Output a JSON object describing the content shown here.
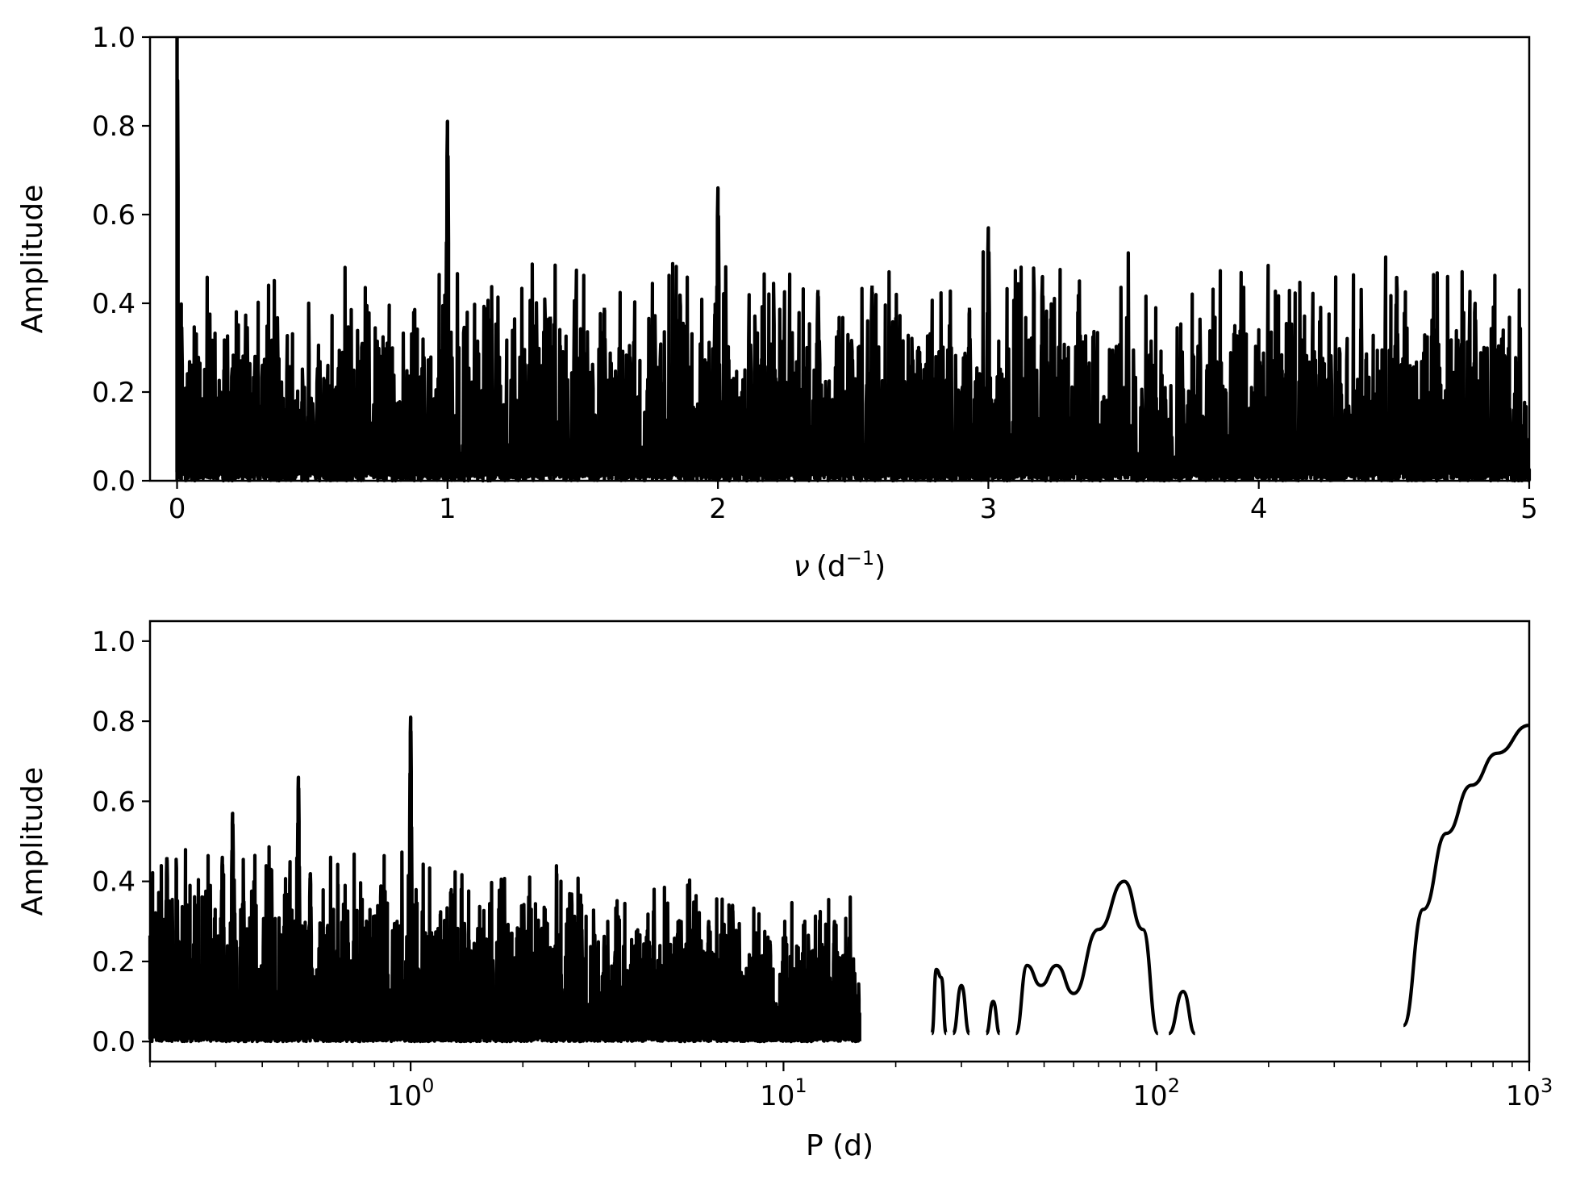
{
  "chart_data": [
    {
      "type": "line",
      "xlabel_symbol": "ν",
      "xlabel_unit": "(d",
      "xlabel_sup": "−1",
      "xlabel_close": ")",
      "ylabel": "Amplitude",
      "xlim": [
        -0.1,
        5.0
      ],
      "ylim": [
        0.0,
        1.0
      ],
      "xscale": "linear",
      "grid": false,
      "xticks": [
        0,
        1,
        2,
        3,
        4,
        5
      ],
      "xtick_labels": [
        "0",
        "1",
        "2",
        "3",
        "4",
        "5"
      ],
      "yticks": [
        0.0,
        0.2,
        0.4,
        0.6,
        0.8,
        1.0
      ],
      "ytick_labels": [
        "0.0",
        "0.2",
        "0.4",
        "0.6",
        "0.8",
        "1.0"
      ],
      "noise_level": 0.22,
      "peaks": [
        {
          "x": 0.0,
          "y": 1.0
        },
        {
          "x": 0.015,
          "y": 0.4
        },
        {
          "x": 1.0,
          "y": 0.81
        },
        {
          "x": 0.99,
          "y": 0.42
        },
        {
          "x": 2.0,
          "y": 0.66
        },
        {
          "x": 1.99,
          "y": 0.4
        },
        {
          "x": 3.0,
          "y": 0.57
        },
        {
          "x": 3.2,
          "y": 0.46
        },
        {
          "x": 4.51,
          "y": 0.46
        },
        {
          "x": 2.37,
          "y": 0.43
        },
        {
          "x": 1.86,
          "y": 0.42
        },
        {
          "x": 4.8,
          "y": 0.4
        },
        {
          "x": 2.93,
          "y": 0.39
        },
        {
          "x": 1.58,
          "y": 0.39
        },
        {
          "x": 1.38,
          "y": 0.37
        },
        {
          "x": 0.37,
          "y": 0.36
        },
        {
          "x": 2.57,
          "y": 0.44
        }
      ]
    },
    {
      "type": "line",
      "xlabel": "P (d)",
      "ylabel": "Amplitude",
      "xlim": [
        0.2,
        1000
      ],
      "ylim": [
        -0.05,
        1.05
      ],
      "xscale": "log",
      "grid": false,
      "xticks": [
        1,
        10,
        100,
        1000
      ],
      "xtick_base": "10",
      "xtick_exponents": [
        "0",
        "1",
        "2",
        "3"
      ],
      "yticks": [
        0.0,
        0.2,
        0.4,
        0.6,
        0.8,
        1.0
      ],
      "ytick_labels": [
        "0.0",
        "0.2",
        "0.4",
        "0.6",
        "0.8",
        "1.0"
      ],
      "peaks": [
        {
          "x": 1.0,
          "y": 0.81
        },
        {
          "x": 0.5,
          "y": 0.66
        },
        {
          "x": 0.333,
          "y": 0.57
        },
        {
          "x": 0.3125,
          "y": 0.46
        },
        {
          "x": 0.222,
          "y": 0.46
        },
        {
          "x": 0.422,
          "y": 0.43
        },
        {
          "x": 0.538,
          "y": 0.42
        },
        {
          "x": 0.833,
          "y": 0.39
        },
        {
          "x": 2.7,
          "y": 0.37
        },
        {
          "x": 7.3,
          "y": 0.34
        },
        {
          "x": 13.7,
          "y": 0.3
        },
        {
          "x": 9.2,
          "y": 0.25
        },
        {
          "x": 6.3,
          "y": 0.3
        },
        {
          "x": 5.2,
          "y": 0.27
        }
      ],
      "long_period_segments": [
        {
          "x": [
            25.0,
            25.7,
            26.5,
            27.3
          ],
          "y": [
            0.02,
            0.18,
            0.16,
            0.02
          ]
        },
        {
          "x": [
            28.5,
            30.0,
            31.5
          ],
          "y": [
            0.02,
            0.14,
            0.02
          ]
        },
        {
          "x": [
            35.0,
            36.5,
            38.0
          ],
          "y": [
            0.02,
            0.1,
            0.02
          ]
        },
        {
          "x": [
            42.0,
            45.0,
            49.0,
            54.0,
            60.0,
            70.0,
            82.0,
            92.0,
            101.0
          ],
          "y": [
            0.02,
            0.19,
            0.14,
            0.19,
            0.12,
            0.28,
            0.4,
            0.28,
            0.02
          ]
        },
        {
          "x": [
            108.0,
            118.0,
            127.0
          ],
          "y": [
            0.02,
            0.125,
            0.02
          ]
        },
        {
          "x": [
            460,
            520,
            600,
            700,
            820,
            1000
          ],
          "y": [
            0.04,
            0.33,
            0.52,
            0.64,
            0.72,
            0.79
          ]
        }
      ]
    }
  ]
}
